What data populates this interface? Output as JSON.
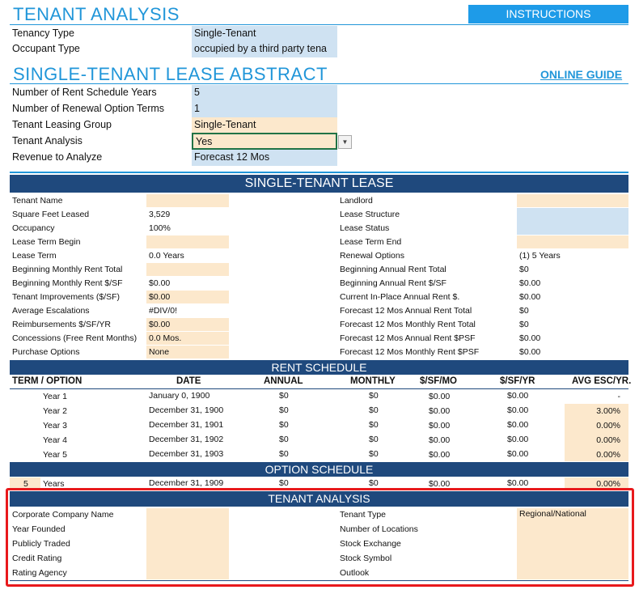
{
  "header": {
    "title": "TENANT ANALYSIS",
    "instructions_label": "INSTRUCTIONS",
    "tenancy_type_label": "Tenancy Type",
    "tenancy_type_value": "Single-Tenant",
    "occupant_type_label": "Occupant Type",
    "occupant_type_value": "occupied by a third party tena"
  },
  "abstract": {
    "title": "SINGLE-TENANT LEASE ABSTRACT",
    "online_guide_label": "ONLINE GUIDE",
    "rows": [
      {
        "label": "Number of Rent Schedule Years",
        "value": "5"
      },
      {
        "label": "Number of Renewal Option Terms",
        "value": "1"
      },
      {
        "label": "Tenant Leasing Group",
        "value": "Single-Tenant"
      },
      {
        "label": "Tenant Analysis",
        "value": "Yes"
      },
      {
        "label": "Revenue to Analyze",
        "value": "Forecast 12 Mos"
      }
    ]
  },
  "lease": {
    "band": "SINGLE-TENANT LEASE",
    "left": [
      {
        "label": "Tenant Name",
        "value": ""
      },
      {
        "label": "Square Feet Leased",
        "value": "3,529"
      },
      {
        "label": "Occupancy",
        "value": "100%"
      },
      {
        "label": "Lease Term Begin",
        "value": ""
      },
      {
        "label": "Lease Term",
        "value": "0.0 Years"
      },
      {
        "label": "Beginning Monthly Rent Total",
        "value": ""
      },
      {
        "label": "Beginning Monthly Rent $/SF",
        "value": "$0.00"
      },
      {
        "label": "Tenant Improvements ($/SF)",
        "value": "$0.00"
      },
      {
        "label": "Average Escalations",
        "value": "#DIV/0!"
      },
      {
        "label": "Reimbursements $/SF/YR",
        "value": "$0.00"
      },
      {
        "label": "Concessions (Free Rent Months)",
        "value": "0.0 Mos."
      },
      {
        "label": "Purchase Options",
        "value": "None"
      }
    ],
    "right": [
      {
        "label": "Landlord",
        "value": ""
      },
      {
        "label": "Lease Structure",
        "value": ""
      },
      {
        "label": "Lease Status",
        "value": ""
      },
      {
        "label": "Lease Term End",
        "value": ""
      },
      {
        "label": "Renewal Options",
        "value": "(1) 5 Years"
      },
      {
        "label": "Beginning Annual Rent Total",
        "value": "$0"
      },
      {
        "label": "Beginning Annual Rent $/SF",
        "value": "$0.00"
      },
      {
        "label": "Current In-Place Annual Rent $.",
        "value": "$0.00"
      },
      {
        "label": "Forecast 12 Mos Annual Rent Total",
        "value": "$0"
      },
      {
        "label": "Forecast 12 Mos Monthly Rent Total",
        "value": "$0"
      },
      {
        "label": "Forecast 12 Mos Annual Rent $PSF",
        "value": "$0.00"
      },
      {
        "label": "Forecast 12 Mos Monthly Rent $PSF",
        "value": "$0.00"
      }
    ]
  },
  "rent_schedule": {
    "band": "RENT SCHEDULE",
    "columns": [
      "TERM / OPTION",
      "DATE",
      "ANNUAL",
      "MONTHLY",
      "$/SF/MO",
      "$/SF/YR",
      "AVG ESC/YR."
    ],
    "rows": [
      {
        "term": "Year 1",
        "date": "January 0, 1900",
        "annual": "$0",
        "monthly": "$0",
        "sfmo": "$0.00",
        "sfyr": "$0.00",
        "esc": "-"
      },
      {
        "term": "Year 2",
        "date": "December 31, 1900",
        "annual": "$0",
        "monthly": "$0",
        "sfmo": "$0.00",
        "sfyr": "$0.00",
        "esc": "3.00%"
      },
      {
        "term": "Year 3",
        "date": "December 31, 1901",
        "annual": "$0",
        "monthly": "$0",
        "sfmo": "$0.00",
        "sfyr": "$0.00",
        "esc": "0.00%"
      },
      {
        "term": "Year 4",
        "date": "December 31, 1902",
        "annual": "$0",
        "monthly": "$0",
        "sfmo": "$0.00",
        "sfyr": "$0.00",
        "esc": "0.00%"
      },
      {
        "term": "Year 5",
        "date": "December 31, 1903",
        "annual": "$0",
        "monthly": "$0",
        "sfmo": "$0.00",
        "sfyr": "$0.00",
        "esc": "0.00%"
      }
    ]
  },
  "option_schedule": {
    "band": "OPTION SCHEDULE",
    "row": {
      "num": "5",
      "term": "Years",
      "date": "December 31, 1909",
      "annual": "$0",
      "monthly": "$0",
      "sfmo": "$0.00",
      "sfyr": "$0.00",
      "esc": "0.00%"
    }
  },
  "tenant_analysis": {
    "band": "TENANT ANALYSIS",
    "left": [
      "Corporate Company Name",
      "Year Founded",
      "Publicly Traded",
      "Credit Rating",
      "Rating Agency"
    ],
    "right": [
      {
        "label": "Tenant Type",
        "value": "Regional/National"
      },
      {
        "label": "Number of Locations",
        "value": ""
      },
      {
        "label": "Stock Exchange",
        "value": ""
      },
      {
        "label": "Stock Symbol",
        "value": ""
      },
      {
        "label": "Outlook",
        "value": ""
      }
    ]
  },
  "colors": {
    "accent": "#2196D9",
    "band": "#1F497D",
    "input_blue": "#CFE2F2",
    "input_tan": "#FCE8CC",
    "highlight": "#E8191C"
  }
}
